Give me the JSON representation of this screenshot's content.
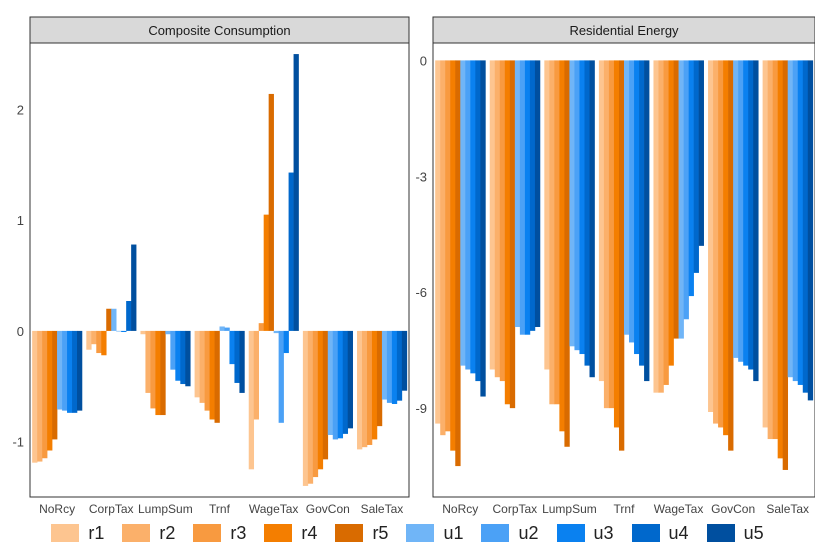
{
  "chart_data": [
    {
      "type": "bar",
      "title": "Composite Consumption",
      "categories": [
        "NoRcy",
        "CorpTax",
        "LumpSum",
        "Trnf",
        "WageTax",
        "GovCon",
        "SaleTax"
      ],
      "ylim": [
        -1.5,
        2.6
      ],
      "yticks": [
        -1,
        0,
        1,
        2
      ],
      "series": [
        {
          "name": "r1",
          "values": [
            -1.19,
            -0.17,
            -0.03,
            -0.6,
            -1.25,
            -1.4,
            -1.07
          ]
        },
        {
          "name": "r2",
          "values": [
            -1.18,
            -0.12,
            -0.56,
            -0.65,
            -0.8,
            -1.38,
            -1.05
          ]
        },
        {
          "name": "r3",
          "values": [
            -1.15,
            -0.2,
            -0.7,
            -0.72,
            0.07,
            -1.32,
            -1.03
          ]
        },
        {
          "name": "r4",
          "values": [
            -1.08,
            -0.22,
            -0.76,
            -0.8,
            1.05,
            -1.25,
            -0.98
          ]
        },
        {
          "name": "r5",
          "values": [
            -0.98,
            0.2,
            -0.76,
            -0.83,
            2.14,
            -1.16,
            -0.86
          ]
        },
        {
          "name": "u1",
          "values": [
            -0.71,
            0.2,
            -0.03,
            0.04,
            -0.02,
            -0.94,
            -0.62
          ]
        },
        {
          "name": "u2",
          "values": [
            -0.72,
            0.0,
            -0.35,
            0.03,
            -0.83,
            -0.98,
            -0.65
          ]
        },
        {
          "name": "u3",
          "values": [
            -0.74,
            -0.01,
            -0.45,
            -0.3,
            -0.2,
            -0.97,
            -0.66
          ]
        },
        {
          "name": "u4",
          "values": [
            -0.74,
            0.27,
            -0.48,
            -0.47,
            1.43,
            -0.93,
            -0.63
          ]
        },
        {
          "name": "u5",
          "values": [
            -0.72,
            0.78,
            -0.5,
            -0.56,
            2.5,
            -0.88,
            -0.54
          ]
        }
      ]
    },
    {
      "type": "bar",
      "title": "Residential Energy",
      "categories": [
        "NoRcy",
        "CorpTax",
        "LumpSum",
        "Trnf",
        "WageTax",
        "GovCon",
        "SaleTax"
      ],
      "ylim": [
        -11.3,
        0.45
      ],
      "yticks": [
        0,
        -3,
        -6,
        -9
      ],
      "series": [
        {
          "name": "r1",
          "values": [
            -9.4,
            -8.0,
            -8.0,
            -8.3,
            -8.6,
            -9.1,
            -9.5
          ]
        },
        {
          "name": "r2",
          "values": [
            -9.7,
            -8.2,
            -8.9,
            -9.0,
            -8.6,
            -9.4,
            -9.8
          ]
        },
        {
          "name": "r3",
          "values": [
            -9.6,
            -8.3,
            -8.9,
            -9.0,
            -8.4,
            -9.5,
            -9.8
          ]
        },
        {
          "name": "r4",
          "values": [
            -10.1,
            -8.9,
            -9.6,
            -9.5,
            -7.9,
            -9.7,
            -10.3
          ]
        },
        {
          "name": "r5",
          "values": [
            -10.5,
            -9.0,
            -10.0,
            -10.1,
            -7.2,
            -10.1,
            -10.6
          ]
        },
        {
          "name": "u1",
          "values": [
            -7.9,
            -6.9,
            -7.4,
            -7.1,
            -7.2,
            -7.7,
            -8.2
          ]
        },
        {
          "name": "u2",
          "values": [
            -8.0,
            -7.1,
            -7.5,
            -7.3,
            -6.7,
            -7.8,
            -8.3
          ]
        },
        {
          "name": "u3",
          "values": [
            -8.1,
            -7.1,
            -7.6,
            -7.6,
            -6.1,
            -7.9,
            -8.4
          ]
        },
        {
          "name": "u4",
          "values": [
            -8.3,
            -7.0,
            -7.9,
            -7.9,
            -5.5,
            -8.0,
            -8.6
          ]
        },
        {
          "name": "u5",
          "values": [
            -8.7,
            -6.9,
            -8.2,
            -8.3,
            -4.8,
            -8.3,
            -8.8
          ]
        }
      ]
    }
  ],
  "colors": {
    "r1": "#fdc590",
    "r2": "#fbb06a",
    "r3": "#f89a40",
    "r4": "#f47e00",
    "r5": "#d96b00",
    "u1": "#70b5f7",
    "u2": "#4ba1f6",
    "u3": "#0a81f0",
    "u4": "#0068cc",
    "u5": "#004f9f",
    "strip_fill": "#d9d9d9",
    "panel_border": "#333333",
    "text": "#444444"
  },
  "legend": {
    "items": [
      "r1",
      "r2",
      "r3",
      "r4",
      "r5",
      "u1",
      "u2",
      "u3",
      "u4",
      "u5"
    ]
  }
}
